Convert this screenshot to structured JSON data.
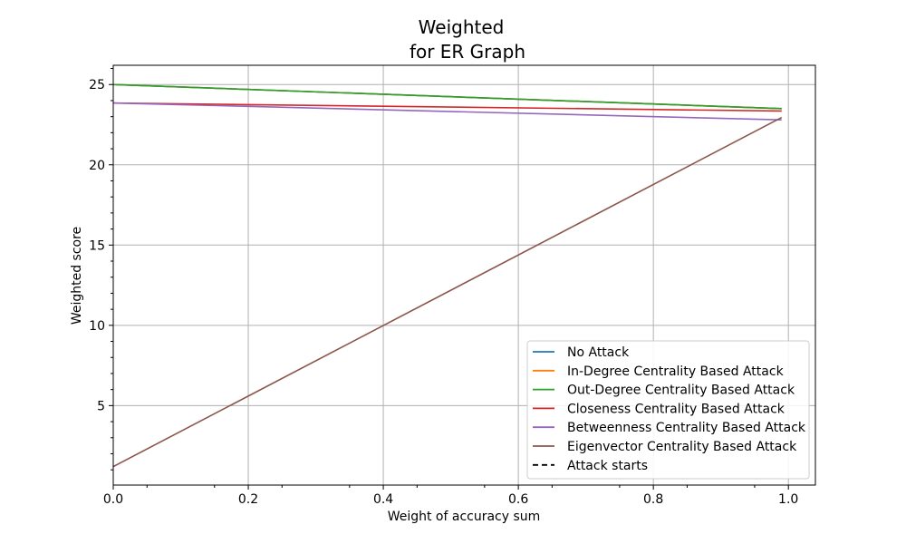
{
  "chart_data": {
    "type": "line",
    "title_lines": [
      "Weighted",
      "for ER Graph"
    ],
    "xlabel": "Weight of accuracy sum",
    "ylabel": "Weighted score",
    "xlim": [
      0.0,
      1.04
    ],
    "ylim": [
      0.05,
      26.2
    ],
    "xticks": [
      0.0,
      0.2,
      0.4,
      0.6,
      0.8,
      1.0
    ],
    "xtick_labels": [
      "0.0",
      "0.2",
      "0.4",
      "0.6",
      "0.8",
      "1.0"
    ],
    "yticks": [
      5,
      10,
      15,
      20,
      25
    ],
    "ytick_labels": [
      "5",
      "10",
      "15",
      "20",
      "25"
    ],
    "grid": true,
    "legend_position": "lower-right",
    "series": [
      {
        "name": "No Attack",
        "color": "#1f77b4",
        "style": "solid",
        "x": [
          0.0,
          0.99
        ],
        "y": [
          25.0,
          23.5
        ]
      },
      {
        "name": "In-Degree Centrality Based Attack",
        "color": "#ff7f0e",
        "style": "solid",
        "x": [
          0.0,
          0.99
        ],
        "y": [
          25.0,
          23.5
        ]
      },
      {
        "name": "Out-Degree Centrality Based Attack",
        "color": "#2ca02c",
        "style": "solid",
        "x": [
          0.0,
          0.99
        ],
        "y": [
          25.0,
          23.5
        ]
      },
      {
        "name": "Closeness Centrality Based Attack",
        "color": "#d62728",
        "style": "solid",
        "x": [
          0.0,
          0.99
        ],
        "y": [
          23.85,
          23.35
        ]
      },
      {
        "name": "Betweenness Centrality Based Attack",
        "color": "#9467bd",
        "style": "solid",
        "x": [
          0.0,
          0.99
        ],
        "y": [
          23.85,
          22.8
        ]
      },
      {
        "name": "Eigenvector Centrality Based Attack",
        "color": "#8c564b",
        "style": "solid",
        "x": [
          0.0,
          0.99
        ],
        "y": [
          1.2,
          22.95
        ]
      },
      {
        "name": "Attack starts",
        "color": "#000000",
        "style": "dashed",
        "x": [],
        "y": []
      }
    ]
  }
}
